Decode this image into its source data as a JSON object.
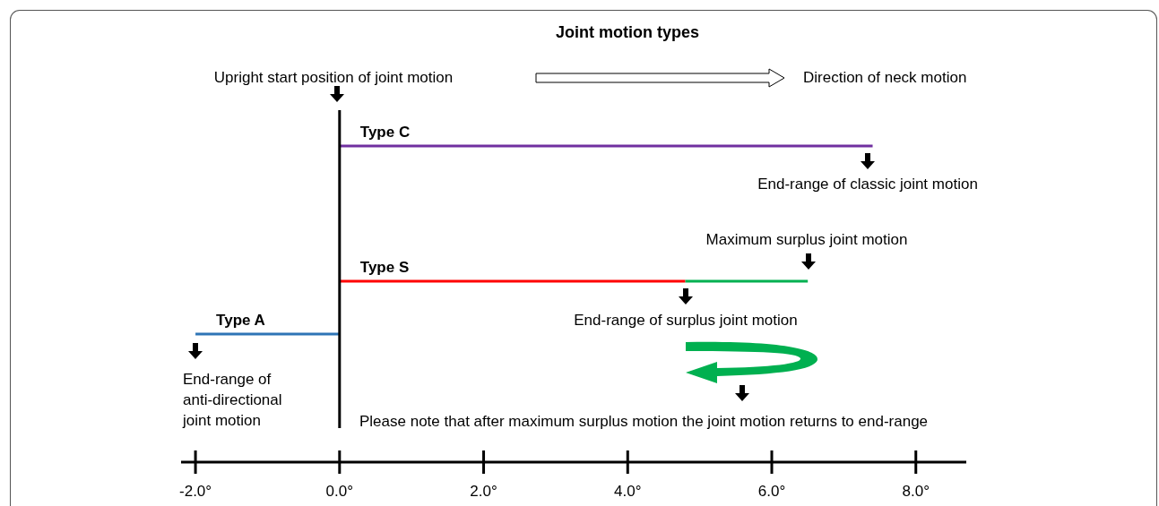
{
  "chart_data": {
    "type": "bar",
    "orientation": "horizontal",
    "stacked": true,
    "title": "Joint motion types",
    "categories": [
      null,
      null,
      null
    ],
    "series": [
      {
        "name": "Type C",
        "color": "#7030a0",
        "values": [
          7.4,
          null,
          null
        ]
      },
      {
        "name": "Type S",
        "color": "#ff0000",
        "values": [
          null,
          4.8,
          null
        ]
      },
      {
        "name": "Type A",
        "color": "#2e75b6",
        "values": [
          null,
          null,
          -2.0
        ]
      },
      {
        "color": "#00b050",
        "values": [
          null,
          1.7,
          null
        ]
      }
    ],
    "xlim": [
      -2.2,
      8.7
    ],
    "xticks": [
      {
        "value": -2,
        "label": "-2.0°"
      },
      {
        "value": 0,
        "label": "0.0°"
      },
      {
        "value": 2,
        "label": "2.0°"
      },
      {
        "value": 4,
        "label": "4.0°"
      },
      {
        "value": 6,
        "label": "6.0°"
      },
      {
        "value": 8,
        "label": "8.0°"
      }
    ],
    "ref_lines": [
      {
        "axis": "x",
        "value": 0,
        "color": "#000000"
      }
    ],
    "annotations": [
      "Upright start position of joint motion",
      "End-range of classic joint motion",
      "Maximum surplus joint motion",
      "End-range of surplus joint motion",
      "End-range of anti-directional joint motion",
      "Direction of neck motion",
      "Please note that after maximum surplus motion the joint motion returns to end-range"
    ]
  }
}
